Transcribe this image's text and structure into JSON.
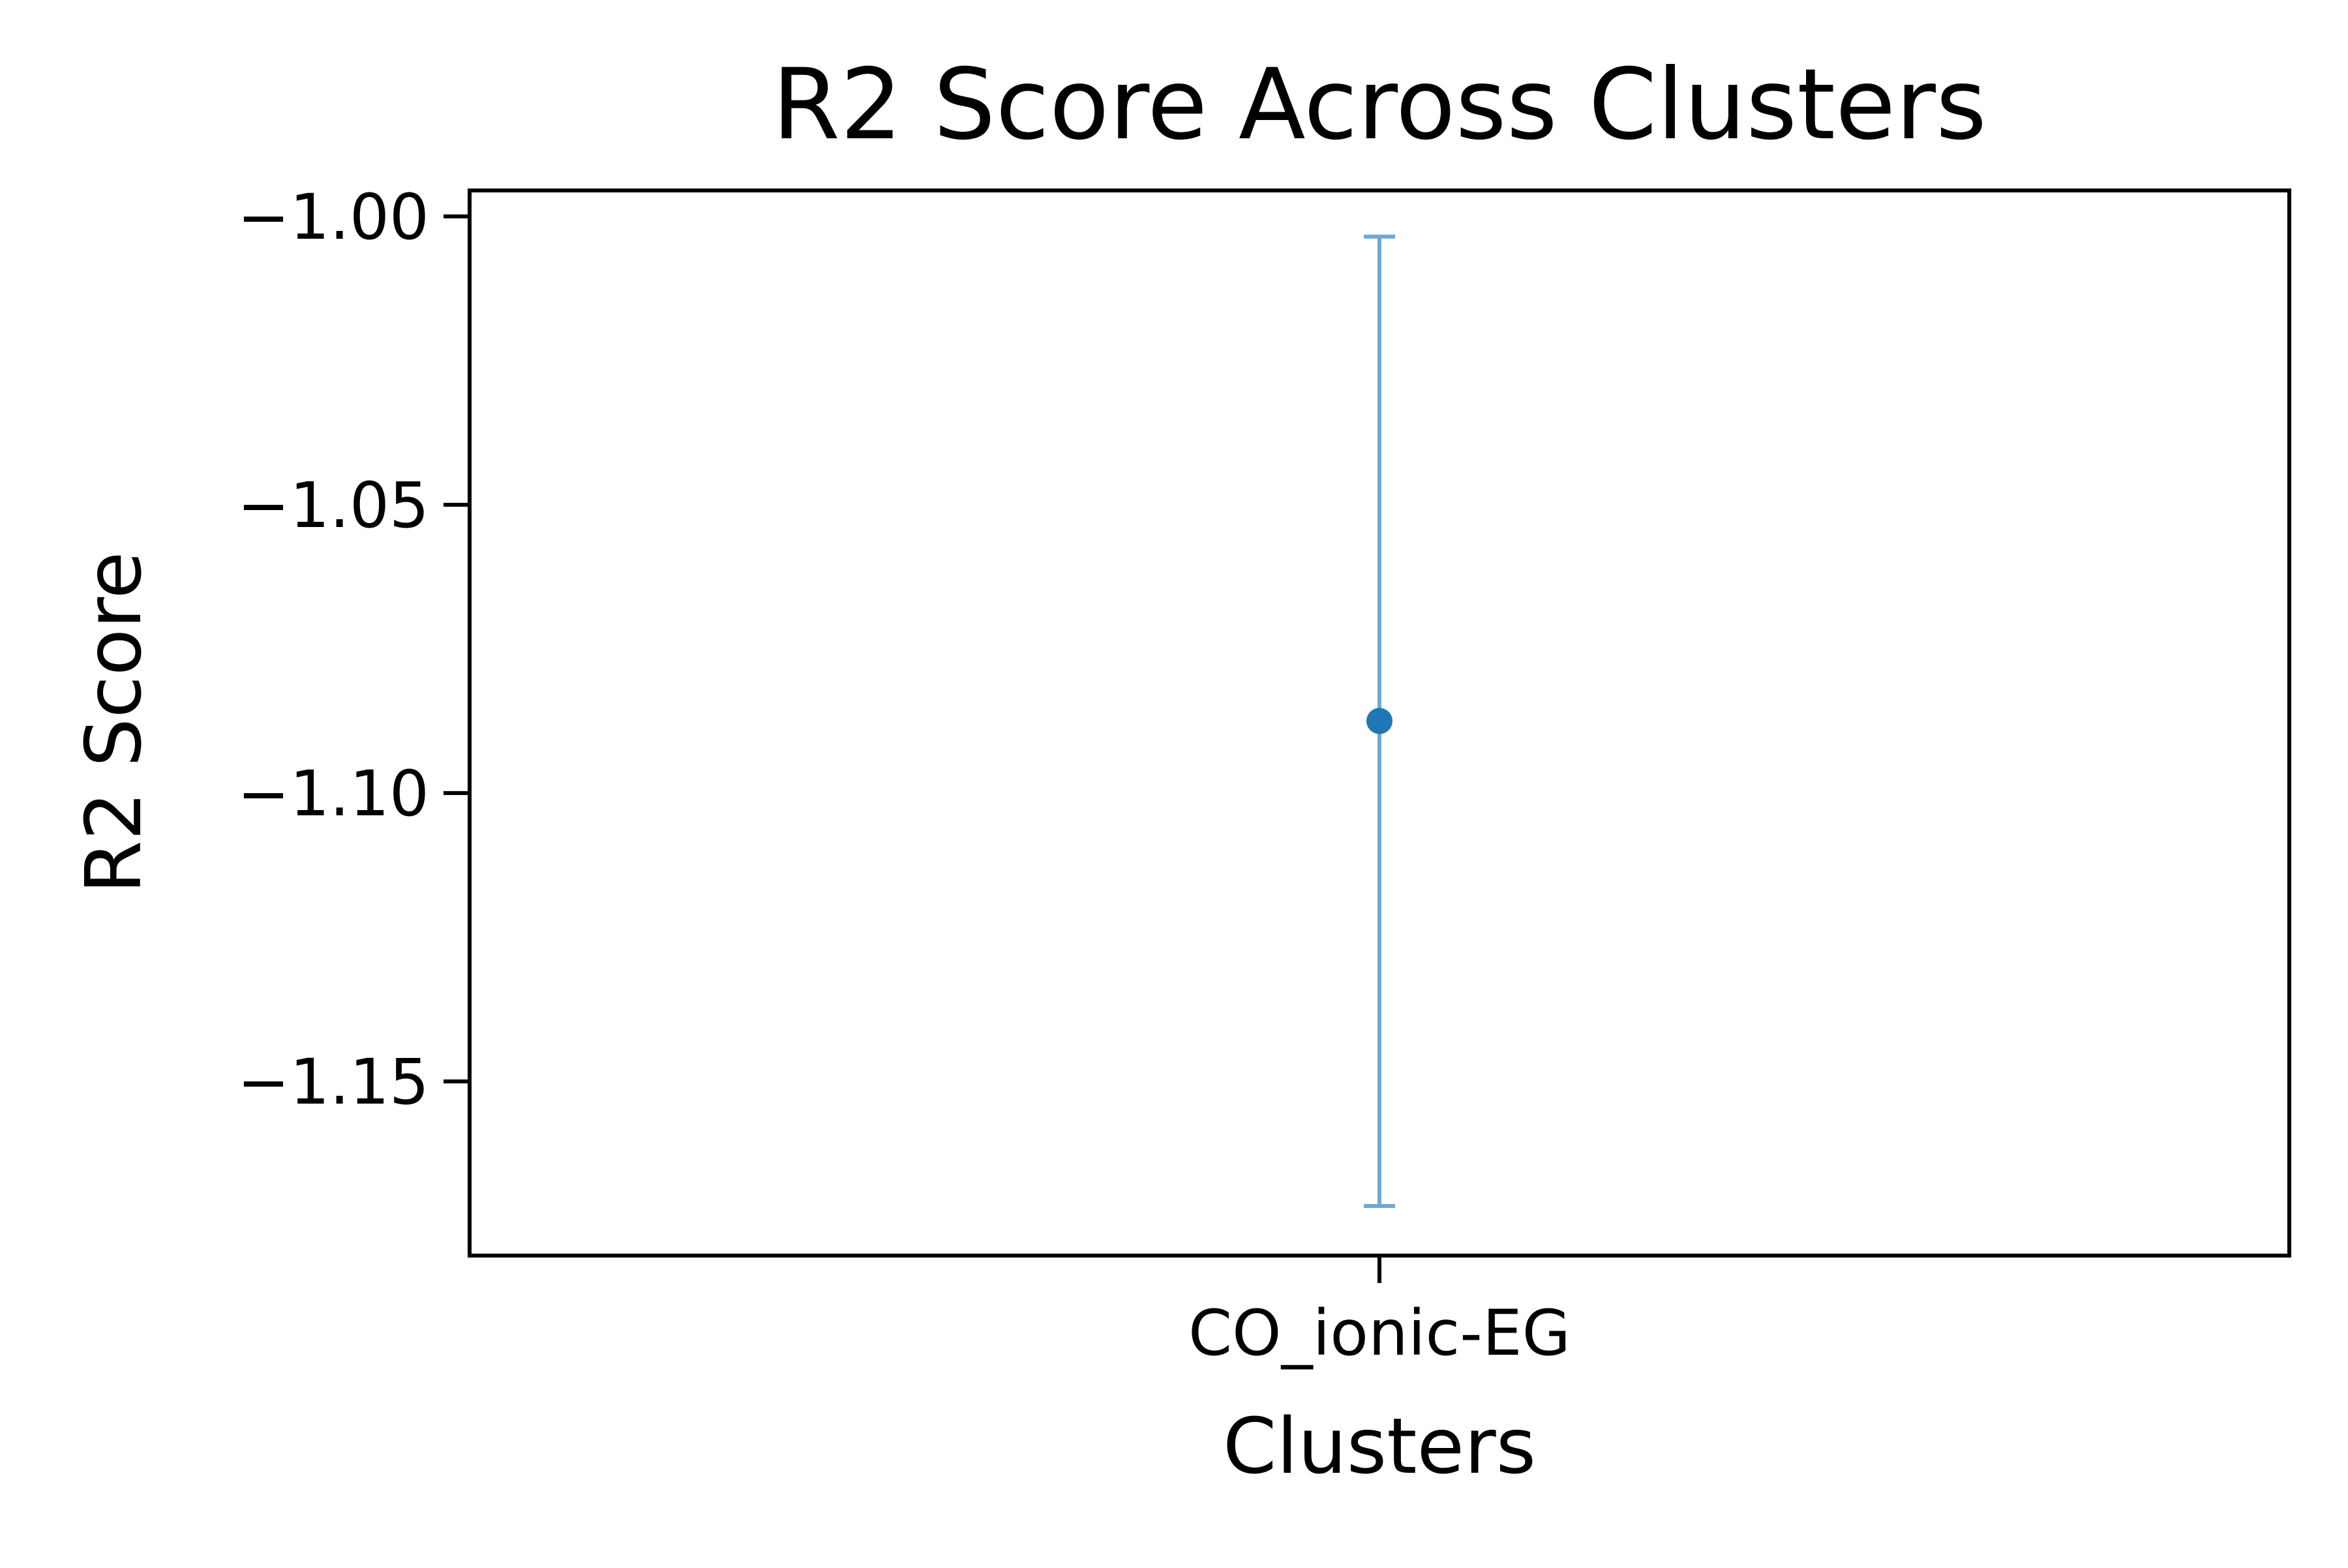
{
  "chart_data": {
    "type": "scatter",
    "title": "R2 Score Across Clusters",
    "xlabel": "Clusters",
    "ylabel": "R2 Score",
    "categories": [
      "CO_ionic-EG"
    ],
    "series": [
      {
        "values": [
          -1.0875
        ],
        "error_lower": [
          -1.1716
        ],
        "error_upper": [
          -1.0035
        ]
      }
    ],
    "yticks": [
      -1.0,
      -1.05,
      -1.1,
      -1.15
    ],
    "ytick_labels": [
      "−1.00",
      "−1.05",
      "−1.10",
      "−1.15"
    ],
    "ylim": [
      -1.1802,
      -0.9955
    ],
    "grid": false,
    "legend": false,
    "colors": {
      "point": "#1f77b4",
      "errorbar": "#6fa7d4",
      "axes": "#000000"
    }
  }
}
